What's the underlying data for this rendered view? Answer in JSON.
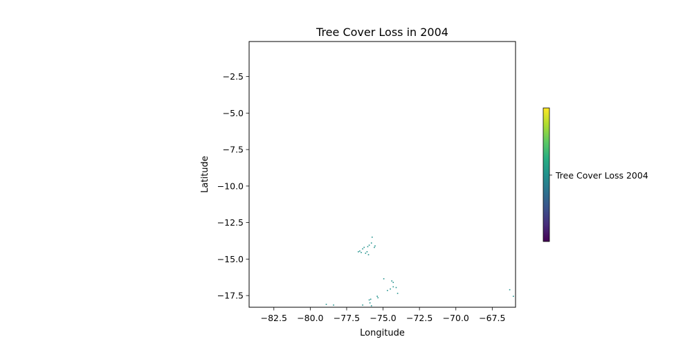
{
  "chart_data": {
    "type": "heatmap",
    "title": "Tree Cover Loss in 2004",
    "xlabel": "Longitude",
    "ylabel": "Latitude",
    "xlim": [
      -84.2,
      -65.9
    ],
    "ylim": [
      -18.3,
      -0.1
    ],
    "xticks": [
      -82.5,
      -80.0,
      -77.5,
      -75.0,
      -72.5,
      -70.0,
      -67.5
    ],
    "xtick_labels": [
      "−82.5",
      "−80.0",
      "−77.5",
      "−75.0",
      "−72.5",
      "−70.0",
      "−67.5"
    ],
    "yticks": [
      -2.5,
      -5.0,
      -7.5,
      -10.0,
      -12.5,
      -15.0,
      -17.5
    ],
    "ytick_labels": [
      "−2.5",
      "−5.0",
      "−7.5",
      "−10.0",
      "−12.5",
      "−15.0",
      "−17.5"
    ],
    "grid": false,
    "colormap": "viridis",
    "colorbar": {
      "label": "Tree Cover Loss 2004",
      "ticks_shown": false
    },
    "pixel_color": "#21918c",
    "loss_points": [
      [
        -76.6,
        -14.45
      ],
      [
        -76.5,
        -14.55
      ],
      [
        -76.4,
        -14.3
      ],
      [
        -76.3,
        -14.2
      ],
      [
        -76.2,
        -14.6
      ],
      [
        -76.1,
        -14.5
      ],
      [
        -76.05,
        -14.15
      ],
      [
        -75.95,
        -14.05
      ],
      [
        -75.8,
        -13.9
      ],
      [
        -75.75,
        -13.5
      ],
      [
        -75.6,
        -14.2
      ],
      [
        -75.55,
        -14.1
      ],
      [
        -76.7,
        -14.5
      ],
      [
        -76.0,
        -14.7
      ],
      [
        -74.95,
        -16.35
      ],
      [
        -74.4,
        -16.5
      ],
      [
        -74.3,
        -16.6
      ],
      [
        -74.3,
        -16.9
      ],
      [
        -74.1,
        -16.95
      ],
      [
        -74.0,
        -17.35
      ],
      [
        -74.5,
        -17.05
      ],
      [
        -74.7,
        -17.15
      ],
      [
        -75.4,
        -17.55
      ],
      [
        -75.35,
        -17.65
      ],
      [
        -75.95,
        -17.8
      ],
      [
        -75.85,
        -17.75
      ],
      [
        -75.9,
        -18.0
      ],
      [
        -78.9,
        -18.1
      ],
      [
        -78.4,
        -18.15
      ],
      [
        -76.4,
        -18.15
      ],
      [
        -75.8,
        -18.2
      ],
      [
        -66.3,
        -17.1
      ],
      [
        -66.05,
        -17.55
      ]
    ]
  }
}
